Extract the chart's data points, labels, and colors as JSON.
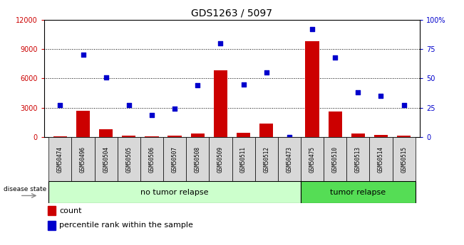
{
  "title": "GDS1263 / 5097",
  "samples": [
    "GSM50474",
    "GSM50496",
    "GSM50504",
    "GSM50505",
    "GSM50506",
    "GSM50507",
    "GSM50508",
    "GSM50509",
    "GSM50511",
    "GSM50512",
    "GSM50473",
    "GSM50475",
    "GSM50510",
    "GSM50513",
    "GSM50514",
    "GSM50515"
  ],
  "count_values": [
    120,
    2700,
    800,
    150,
    120,
    150,
    350,
    6800,
    450,
    1400,
    50,
    9800,
    2600,
    350,
    250,
    150
  ],
  "percentile_values": [
    27,
    70,
    51,
    27,
    19,
    24,
    44,
    80,
    45,
    55,
    0,
    92,
    68,
    38,
    35,
    27
  ],
  "no_tumor_count": 11,
  "tumor_count": 5,
  "ylim_left": [
    0,
    12000
  ],
  "ylim_right": [
    0,
    100
  ],
  "yticks_left": [
    0,
    3000,
    6000,
    9000,
    12000
  ],
  "yticks_right": [
    0,
    25,
    50,
    75,
    100
  ],
  "bar_color": "#cc0000",
  "dot_color": "#0000cc",
  "bg_color": "#d8d8d8",
  "no_tumor_color": "#ccffcc",
  "tumor_color": "#55dd55",
  "label_count": "count",
  "label_percentile": "percentile rank within the sample",
  "disease_state_label": "disease state",
  "no_tumor_label": "no tumor relapse",
  "tumor_label": "tumor relapse",
  "grid_lines": [
    3000,
    6000,
    9000
  ]
}
